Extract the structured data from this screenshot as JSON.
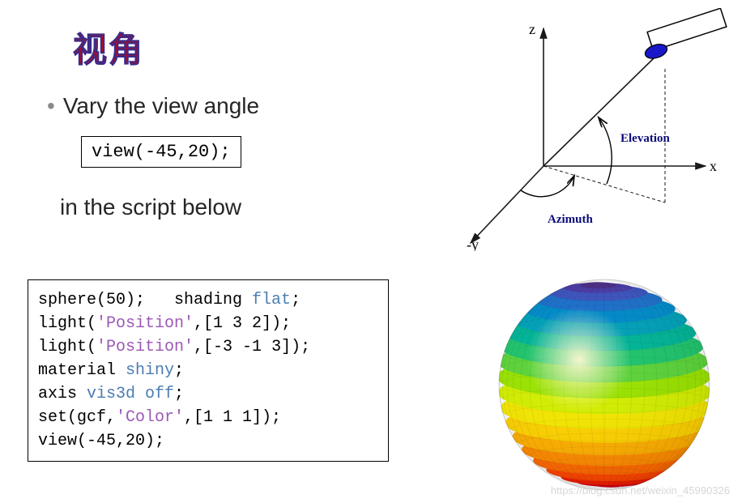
{
  "title": "视角",
  "bullet": "Vary the view angle",
  "inline_code": "view(-45,20);",
  "subtext": "in the script below",
  "code": {
    "l1a": "sphere(50);   shading ",
    "l1b": "flat",
    "l1c": ";",
    "l2a": "light(",
    "l2b": "'Position'",
    "l2c": ",[1 3 2]);",
    "l3a": "light(",
    "l3b": "'Position'",
    "l3c": ",[-3 -1 3]);",
    "l4a": "material ",
    "l4b": "shiny",
    "l4c": ";",
    "l5a": "axis ",
    "l5b": "vis3d off",
    "l5c": ";",
    "l6a": "set(gcf,",
    "l6b": "'Color'",
    "l6c": ",[1 1 1]);",
    "l7": "view(-45,20);"
  },
  "diagram": {
    "colors": {
      "axis": "#1a1a1a",
      "label": "#0b0b7a",
      "camera_fill": "#1818c9",
      "camera_stroke": "#000000",
      "arc": "#000000"
    },
    "labels": {
      "z": "z",
      "x": "x",
      "y": "-y",
      "elevation": "Elevation",
      "azimuth": "Azimuth"
    },
    "font_size_axis": 18,
    "font_size_label": 15
  },
  "sphere": {
    "highlight": "#fff8d0",
    "bands": [
      "#b8001a",
      "#db0015",
      "#f31e00",
      "#ff4600",
      "#ff6a00",
      "#ff8c00",
      "#ffb000",
      "#ffd300",
      "#f5e900",
      "#d4f000",
      "#9be400",
      "#5cd43a",
      "#1fc46d",
      "#00b496",
      "#00a0b8",
      "#008ac8",
      "#1c6fc9",
      "#3c53bd",
      "#4a3aa5",
      "#4b2d88"
    ],
    "radius": 130,
    "facets": 50
  },
  "watermark": "https://blog.csdn.net/weixin_45990326"
}
